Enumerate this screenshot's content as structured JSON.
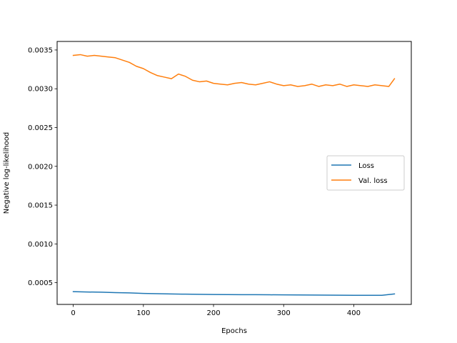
{
  "chart_data": {
    "type": "line",
    "title": "",
    "xlabel": "Epochs",
    "ylabel": "Negative log-likelihood",
    "xlim": [
      -23,
      482
    ],
    "ylim": [
      0.00022,
      0.00361
    ],
    "xticks": [
      0,
      100,
      200,
      300,
      400
    ],
    "xtick_labels": [
      "0",
      "100",
      "200",
      "300",
      "400"
    ],
    "yticks": [
      0.0005,
      0.001,
      0.0015,
      0.002,
      0.0025,
      0.003,
      0.0035
    ],
    "ytick_labels": [
      "0.0005",
      "0.0010",
      "0.0015",
      "0.0020",
      "0.0025",
      "0.0030",
      "0.0035"
    ],
    "grid": false,
    "legend_position": "center-right",
    "series": [
      {
        "name": "Loss",
        "color": "#1f77b4",
        "x": [
          0,
          20,
          40,
          60,
          80,
          100,
          120,
          140,
          160,
          180,
          200,
          220,
          240,
          260,
          280,
          300,
          320,
          340,
          360,
          380,
          400,
          420,
          440,
          458
        ],
        "y": [
          0.000385,
          0.00038,
          0.000378,
          0.000372,
          0.000368,
          0.000362,
          0.000358,
          0.000355,
          0.000352,
          0.00035,
          0.000348,
          0.000347,
          0.000346,
          0.000345,
          0.000344,
          0.000343,
          0.000342,
          0.000341,
          0.00034,
          0.000339,
          0.000338,
          0.000338,
          0.000337,
          0.000355
        ]
      },
      {
        "name": "Val. loss",
        "color": "#ff7f0e",
        "x": [
          0,
          10,
          20,
          30,
          40,
          50,
          60,
          70,
          80,
          90,
          100,
          110,
          120,
          130,
          140,
          150,
          160,
          170,
          180,
          190,
          200,
          210,
          220,
          230,
          240,
          250,
          260,
          270,
          280,
          290,
          300,
          310,
          320,
          330,
          340,
          350,
          360,
          370,
          380,
          390,
          400,
          410,
          420,
          430,
          440,
          450,
          458
        ],
        "y": [
          0.00343,
          0.00344,
          0.00342,
          0.00343,
          0.00342,
          0.00341,
          0.0034,
          0.00337,
          0.00334,
          0.00329,
          0.00326,
          0.00321,
          0.00317,
          0.00315,
          0.00313,
          0.00319,
          0.00316,
          0.00311,
          0.00309,
          0.0031,
          0.00307,
          0.00306,
          0.00305,
          0.00307,
          0.00308,
          0.00306,
          0.00305,
          0.00307,
          0.00309,
          0.00306,
          0.00304,
          0.00305,
          0.00303,
          0.00304,
          0.00306,
          0.00303,
          0.00305,
          0.00304,
          0.00306,
          0.00303,
          0.00305,
          0.00304,
          0.00303,
          0.00305,
          0.00304,
          0.00303,
          0.00313
        ]
      }
    ]
  }
}
